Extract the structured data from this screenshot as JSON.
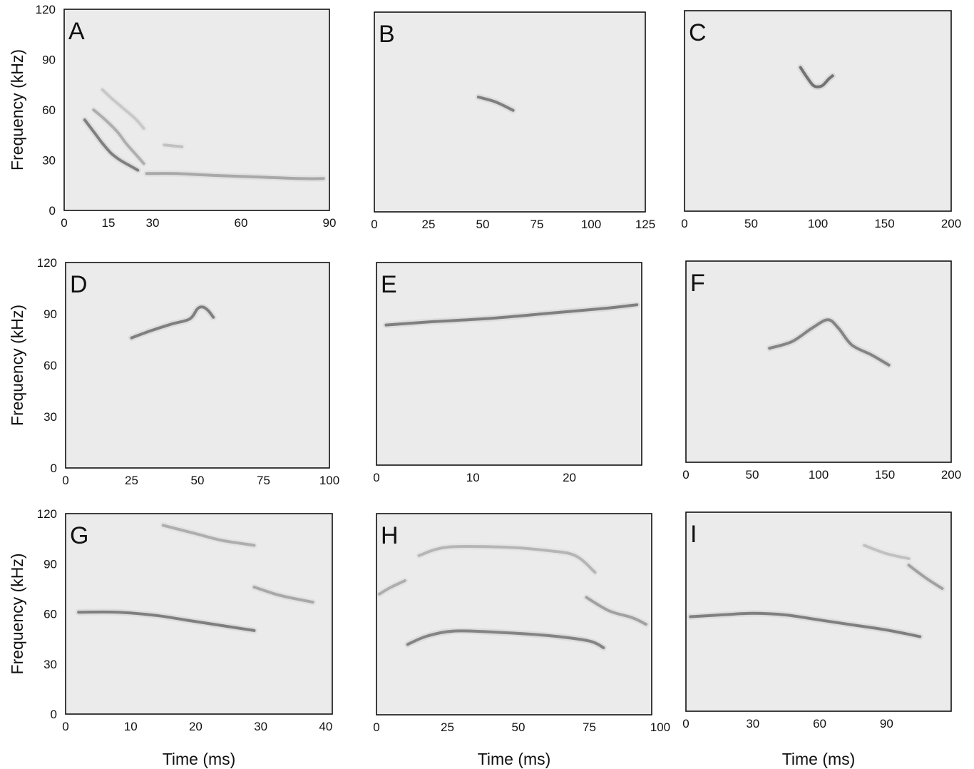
{
  "chart_data": [
    {
      "panel": "A",
      "type": "heatmap",
      "ylabel": "Frequency (kHz)",
      "xlabel": "",
      "x_ticks": [
        0,
        15,
        30,
        60,
        90
      ],
      "y_ticks": [
        0,
        30,
        60,
        90,
        120
      ],
      "xlim": [
        0,
        90
      ],
      "ylim": [
        0,
        120
      ],
      "traces": [
        {
          "x": [
            7,
            10,
            13,
            16,
            19,
            22,
            25
          ],
          "y": [
            54,
            47,
            40,
            34,
            30,
            27,
            24
          ],
          "strength": 0.85
        },
        {
          "x": [
            10,
            14,
            18,
            21,
            24,
            27
          ],
          "y": [
            60,
            54,
            47,
            40,
            34,
            28
          ],
          "strength": 0.45
        },
        {
          "x": [
            13,
            16,
            20,
            24,
            27
          ],
          "y": [
            72,
            67,
            61,
            55,
            49
          ],
          "strength": 0.25
        },
        {
          "x": [
            28,
            38,
            50,
            65,
            80,
            88
          ],
          "y": [
            22,
            22,
            21,
            20,
            19,
            19
          ],
          "strength": 0.5
        },
        {
          "x": [
            34,
            40
          ],
          "y": [
            39,
            38
          ],
          "strength": 0.3
        }
      ]
    },
    {
      "panel": "B",
      "type": "heatmap",
      "ylabel": "",
      "xlabel": "",
      "x_ticks": [
        0,
        25,
        50,
        75,
        100,
        125
      ],
      "y_ticks": [],
      "xlim": [
        0,
        125
      ],
      "ylim": [
        0,
        120
      ],
      "traces": [
        {
          "x": [
            48,
            56,
            64
          ],
          "y": [
            69,
            66,
            61
          ],
          "strength": 0.85
        }
      ]
    },
    {
      "panel": "C",
      "type": "heatmap",
      "ylabel": "",
      "xlabel": "",
      "x_ticks": [
        0,
        50,
        100,
        150,
        200
      ],
      "y_ticks": [],
      "xlim": [
        0,
        200
      ],
      "ylim": [
        0,
        120
      ],
      "traces": [
        {
          "x": [
            87,
            92,
            97,
            103,
            108,
            111
          ],
          "y": [
            86,
            80,
            75,
            75,
            79,
            81
          ],
          "strength": 0.95
        }
      ]
    },
    {
      "panel": "D",
      "type": "heatmap",
      "ylabel": "Frequency (kHz)",
      "xlabel": "",
      "x_ticks": [
        0,
        25,
        50,
        75,
        100
      ],
      "y_ticks": [
        0,
        30,
        60,
        90,
        120
      ],
      "xlim": [
        0,
        100
      ],
      "ylim": [
        0,
        120
      ],
      "traces": [
        {
          "x": [
            25,
            32,
            40,
            47,
            50,
            52,
            54,
            56
          ],
          "y": [
            76,
            80,
            84,
            87,
            93,
            94,
            92,
            88
          ],
          "strength": 0.85
        }
      ]
    },
    {
      "panel": "E",
      "type": "heatmap",
      "ylabel": "",
      "xlabel": "",
      "x_ticks": [
        0,
        10,
        20
      ],
      "y_ticks": [],
      "xlim": [
        0,
        27.5
      ],
      "ylim": [
        0,
        120
      ],
      "traces": [
        {
          "x": [
            1,
            6,
            12,
            18,
            24,
            27
          ],
          "y": [
            83,
            85,
            87,
            90,
            93,
            95
          ],
          "strength": 0.85
        }
      ]
    },
    {
      "panel": "F",
      "type": "heatmap",
      "ylabel": "",
      "xlabel": "",
      "x_ticks": [
        0,
        50,
        100,
        150,
        200
      ],
      "y_ticks": [],
      "xlim": [
        0,
        200
      ],
      "ylim": [
        0,
        120
      ],
      "traces": [
        {
          "x": [
            63,
            80,
            95,
            107,
            115,
            125,
            140,
            153
          ],
          "y": [
            68,
            72,
            80,
            85,
            80,
            70,
            64,
            58
          ],
          "strength": 0.8
        }
      ]
    },
    {
      "panel": "G",
      "type": "heatmap",
      "ylabel": "Frequency (kHz)",
      "xlabel": "Time (ms)",
      "x_ticks": [
        0,
        10,
        20,
        30,
        40
      ],
      "y_ticks": [
        0,
        30,
        60,
        90,
        120
      ],
      "xlim": [
        0,
        41
      ],
      "ylim": [
        0,
        120
      ],
      "traces": [
        {
          "x": [
            2,
            8,
            14,
            19,
            24,
            29
          ],
          "y": [
            61,
            61,
            59,
            56,
            53,
            50
          ],
          "strength": 0.85
        },
        {
          "x": [
            15,
            20,
            24,
            29
          ],
          "y": [
            113,
            108,
            104,
            101
          ],
          "strength": 0.45
        },
        {
          "x": [
            29,
            33,
            38
          ],
          "y": [
            76,
            71,
            67
          ],
          "strength": 0.5
        }
      ]
    },
    {
      "panel": "H",
      "type": "heatmap",
      "ylabel": "",
      "xlabel": "Time (ms)",
      "x_ticks": [
        0,
        25,
        50,
        75,
        100
      ],
      "y_ticks": [],
      "xlim": [
        0,
        97
      ],
      "ylim": [
        0,
        120
      ],
      "traces": [
        {
          "x": [
            11,
            18,
            28,
            45,
            62,
            75,
            80
          ],
          "y": [
            42,
            47,
            50,
            49,
            47,
            44,
            40
          ],
          "strength": 0.8
        },
        {
          "x": [
            15,
            25,
            45,
            60,
            70,
            77
          ],
          "y": [
            95,
            100,
            100,
            98,
            95,
            85
          ],
          "strength": 0.4
        },
        {
          "x": [
            1,
            5,
            10
          ],
          "y": [
            72,
            76,
            80
          ],
          "strength": 0.45
        },
        {
          "x": [
            74,
            82,
            90,
            95
          ],
          "y": [
            70,
            62,
            58,
            54
          ],
          "strength": 0.55
        }
      ]
    },
    {
      "panel": "I",
      "type": "heatmap",
      "ylabel": "",
      "xlabel": "Time (ms)",
      "x_ticks": [
        0,
        30,
        60,
        90
      ],
      "y_ticks": [],
      "xlim": [
        0,
        119
      ],
      "ylim": [
        0,
        120
      ],
      "traces": [
        {
          "x": [
            2,
            15,
            30,
            45,
            60,
            75,
            90,
            105
          ],
          "y": [
            57,
            58,
            59,
            58,
            55,
            52,
            49,
            45
          ],
          "strength": 0.85
        },
        {
          "x": [
            80,
            90,
            100
          ],
          "y": [
            100,
            95,
            92
          ],
          "strength": 0.3
        },
        {
          "x": [
            100,
            108,
            115
          ],
          "y": [
            88,
            80,
            74
          ],
          "strength": 0.55
        }
      ]
    }
  ]
}
